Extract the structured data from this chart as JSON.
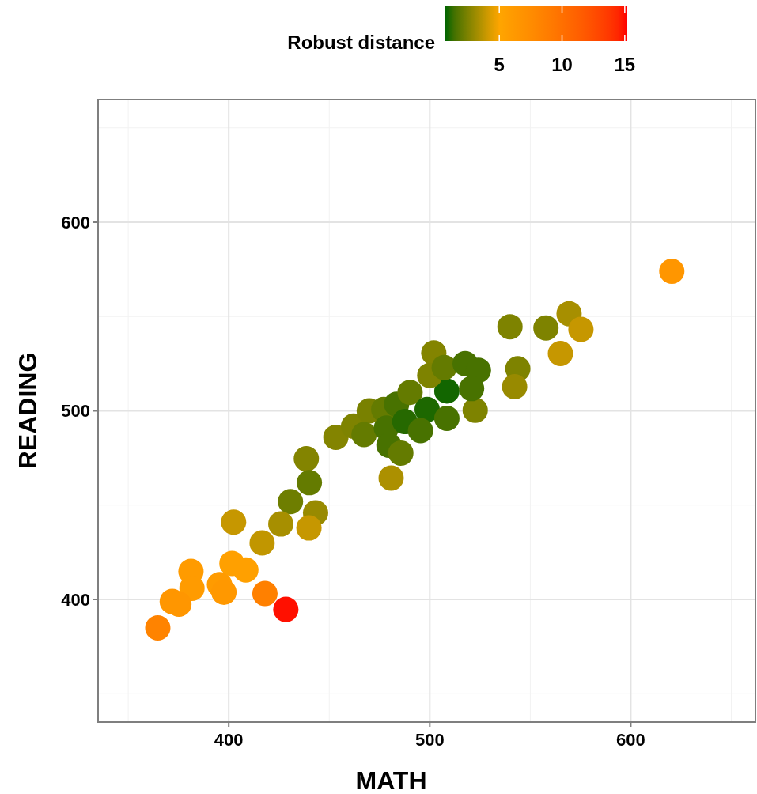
{
  "chart_data": {
    "type": "scatter",
    "xlabel": "MATH",
    "ylabel": "READING",
    "clabel": "Robust distance",
    "xlim": [
      335,
      662
    ],
    "ylim": [
      335,
      665
    ],
    "xticks": [
      400,
      500,
      600
    ],
    "yticks": [
      400,
      500,
      600
    ],
    "clim": [
      0.7,
      15.2
    ],
    "cticks": [
      5,
      10,
      15
    ],
    "grid": true,
    "marker": "circle",
    "series": [
      {
        "x": [
          620.4,
          569.3,
          539.9,
          557.8,
          575.2,
          565,
          543.8,
          542.2,
          522.6,
          508.5,
          453.3,
          462.1,
          469.9,
          467.3,
          477.1,
          483.5,
          490.2,
          478.4,
          487.6,
          498.7,
          495.4,
          479.7,
          485.6,
          480.8,
          508.5,
          502,
          500,
          507.2,
          517.6,
          524.2,
          520.8,
          438.6,
          440.1,
          430.7,
          443.2,
          439.9,
          425.9,
          402.4,
          416.6,
          401.6,
          408.5,
          381.2,
          381.7,
          395.4,
          397.6,
          371.9,
          375.2,
          418,
          428.4,
          364.7
        ],
        "values": [
          574,
          551.5,
          544.6,
          543.9,
          543.2,
          530.4,
          522.3,
          512.8,
          500.3,
          510.5,
          486,
          491.9,
          500,
          487.4,
          500.7,
          503.5,
          509.8,
          490.9,
          494.3,
          500.7,
          489.5,
          481.8,
          477.6,
          464.4,
          496,
          530.7,
          518.8,
          523,
          525.1,
          521.5,
          511.8,
          474.6,
          461.9,
          451.9,
          445.9,
          437.9,
          440,
          441,
          430,
          419.1,
          415.6,
          414.9,
          405.9,
          407.9,
          403.8,
          398.9,
          397.5,
          403.1,
          394.7,
          384.9
        ],
        "cvalues": [
          6.5,
          3.3,
          2.5,
          2.5,
          3.9,
          3.9,
          2.5,
          3,
          2.5,
          0.8,
          2.6,
          2.5,
          2.4,
          2,
          2,
          1.5,
          2,
          1.5,
          1,
          0.9,
          1.5,
          1.5,
          2,
          3.4,
          1.5,
          2.6,
          2.5,
          2,
          1.5,
          1.5,
          1.5,
          2.6,
          2,
          2.2,
          3,
          3.9,
          3.3,
          3.9,
          3.8,
          5.5,
          5.5,
          6,
          6,
          6,
          6.3,
          6.5,
          6.5,
          8.6,
          15,
          8.3
        ]
      }
    ]
  }
}
